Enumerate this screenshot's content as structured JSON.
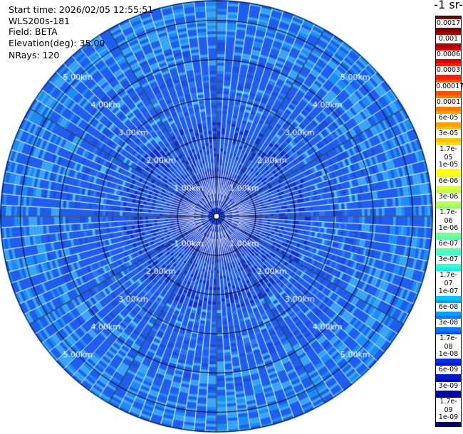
{
  "header": {
    "start_time": "Start time: 2026/02/05 12:55:51",
    "instrument": "WLS200s-181",
    "field": "Field: BETA",
    "elevation": "Elevation(deg): 35.00",
    "nrays": "NRays: 120"
  },
  "units_label": "-1 sr-",
  "ppi": {
    "n_rays": 120,
    "max_range_km": 5.5,
    "range_rings_km": [
      1,
      2,
      3,
      4,
      5
    ],
    "ring_labels": [
      "1.00km",
      "2.00km",
      "3.00km",
      "4.00km",
      "5.00km"
    ],
    "background_color": "#1e5ff0"
  },
  "colorbar": {
    "labels": [
      "0.0017",
      "0.001",
      "0.0006",
      "0.0003",
      "0.00017",
      "0.0001",
      "6e-05",
      "3e-05",
      "1.7e-05",
      "1e-05",
      "6e-06",
      "3e-06",
      "1.7e-06",
      "1e-06",
      "6e-07",
      "3e-07",
      "1.7e-07",
      "1e-07",
      "6e-08",
      "3e-08",
      "1.7e-08",
      "1e-08",
      "6e-09",
      "3e-09",
      "1.7e-09",
      "1e-09"
    ],
    "colors": [
      "#800000",
      "#b00000",
      "#e00000",
      "#ff2000",
      "#ff5000",
      "#ff7800",
      "#ffa000",
      "#ffc000",
      "#ffe000",
      "#ffff10",
      "#e0ff30",
      "#b8ff50",
      "#90ff70",
      "#70ff90",
      "#50ffb0",
      "#30ffd8",
      "#10f0ff",
      "#00c8ff",
      "#00a0ff",
      "#0078ff",
      "#0050ff",
      "#0030e8",
      "#0018d0",
      "#0008b0",
      "#000090",
      "#000070"
    ]
  }
}
